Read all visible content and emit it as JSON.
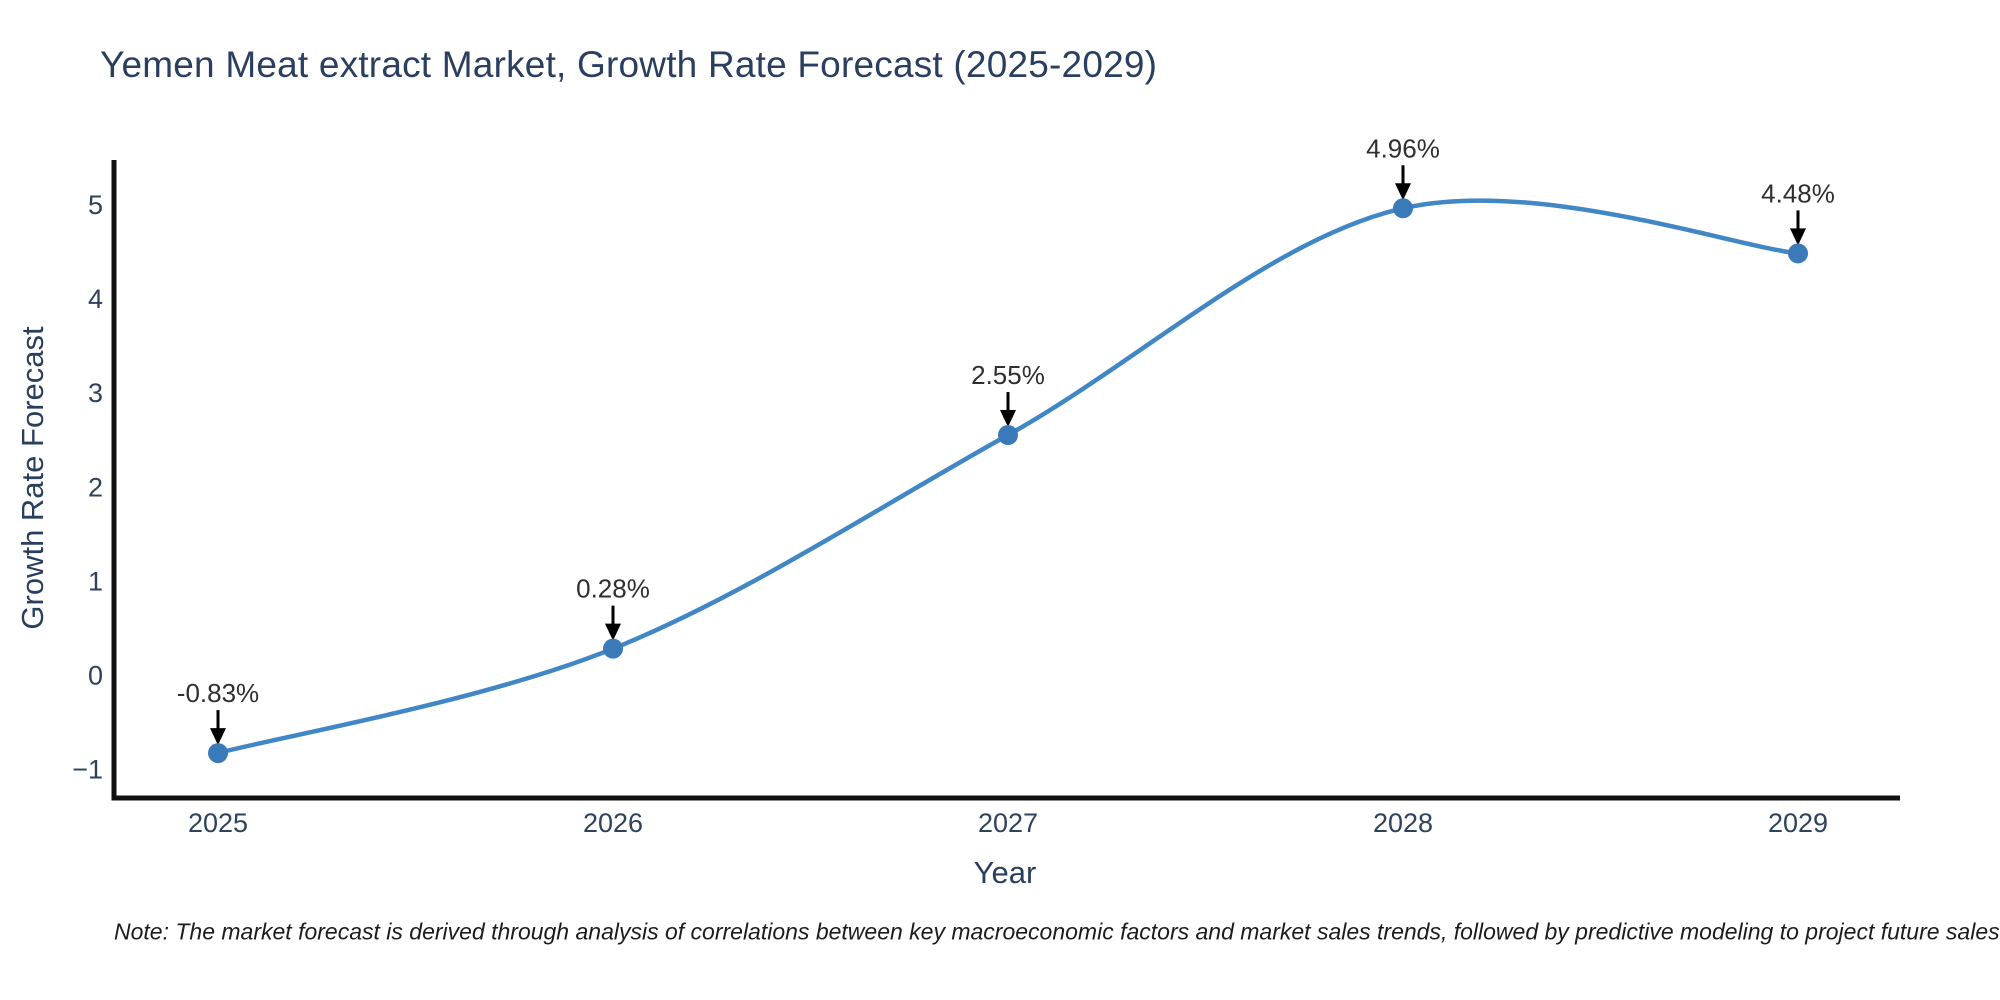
{
  "chart_data": {
    "type": "line",
    "title": "Yemen Meat extract Market, Growth Rate Forecast (2025-2029)",
    "xlabel": "Year",
    "ylabel": "Growth Rate Forecast",
    "x": [
      2025,
      2026,
      2027,
      2028,
      2029
    ],
    "series": [
      {
        "name": "Growth Rate Forecast",
        "values": [
          -0.83,
          0.28,
          2.55,
          4.96,
          4.48
        ]
      }
    ],
    "point_labels": [
      "-0.83%",
      "0.28%",
      "2.55%",
      "4.96%",
      "4.48%"
    ],
    "xtick_labels": [
      "2025",
      "2026",
      "2027",
      "2028",
      "2029"
    ],
    "ytick_values": [
      5,
      4,
      3,
      2,
      1,
      0,
      -1
    ],
    "ytick_labels": [
      "5",
      "4",
      "3",
      "2",
      "1",
      "0",
      "−1"
    ],
    "ylim": [
      -1.3,
      5.6
    ],
    "xlim": [
      2024.73,
      2029.27
    ],
    "grid": false,
    "legend": false,
    "line_shape": "spline",
    "markers": true
  },
  "note": "Note: The market forecast is derived through analysis of correlations between key macroeconomic factors and market sales trends, followed by predictive modeling to project future sales",
  "colors": {
    "line": "#4186c5",
    "marker": "#3a7ab8",
    "axis": "#111111",
    "title_text": "#2a3f5f",
    "tick_text": "#2e425c",
    "annotation_text": "#2f2f2f",
    "arrow": "#000000",
    "background": "#ffffff"
  }
}
